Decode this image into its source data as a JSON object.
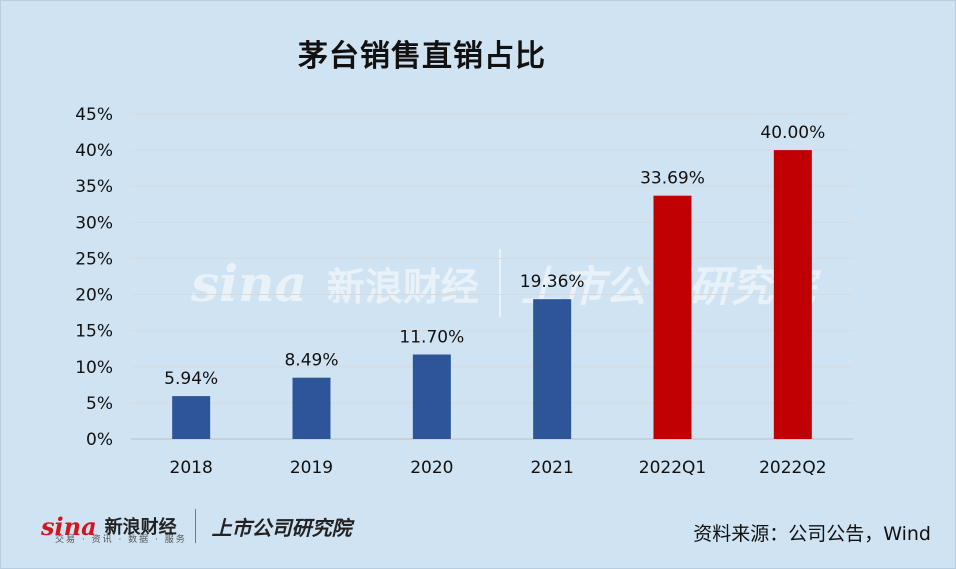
{
  "chart_data": {
    "type": "bar",
    "title": "茅台销售直销占比",
    "categories": [
      "2018",
      "2019",
      "2020",
      "2021",
      "2022Q1",
      "2022Q2"
    ],
    "values": [
      5.94,
      8.49,
      11.7,
      19.36,
      33.69,
      40.0
    ],
    "data_labels": [
      "5.94%",
      "8.49%",
      "11.70%",
      "19.36%",
      "33.69%",
      "40.00%"
    ],
    "bar_colors": [
      "#2e5597",
      "#2e5597",
      "#2e5597",
      "#2e5597",
      "#c00000",
      "#c00000"
    ],
    "ylim": [
      0,
      45
    ],
    "yticks": [
      "0%",
      "5%",
      "10%",
      "15%",
      "20%",
      "25%",
      "30%",
      "35%",
      "40%",
      "45%"
    ],
    "grid": true,
    "xlabel": "",
    "ylabel": ""
  },
  "footer": {
    "logo_sina": "sina",
    "logo_cn": "新浪财经",
    "logo_sub": "交易 · 资讯 · 数据 · 服务",
    "logo_inst": "上市公司研究院",
    "source": "资料来源：公司公告，Wind"
  },
  "watermark": {
    "sina": "sina",
    "cn": "新浪财经",
    "inst": "上市公司研究院"
  },
  "colors": {
    "background": "#cfe3f3",
    "blue_bar": "#2e5597",
    "red_bar": "#c00000",
    "grid": "#d9d9d9"
  }
}
